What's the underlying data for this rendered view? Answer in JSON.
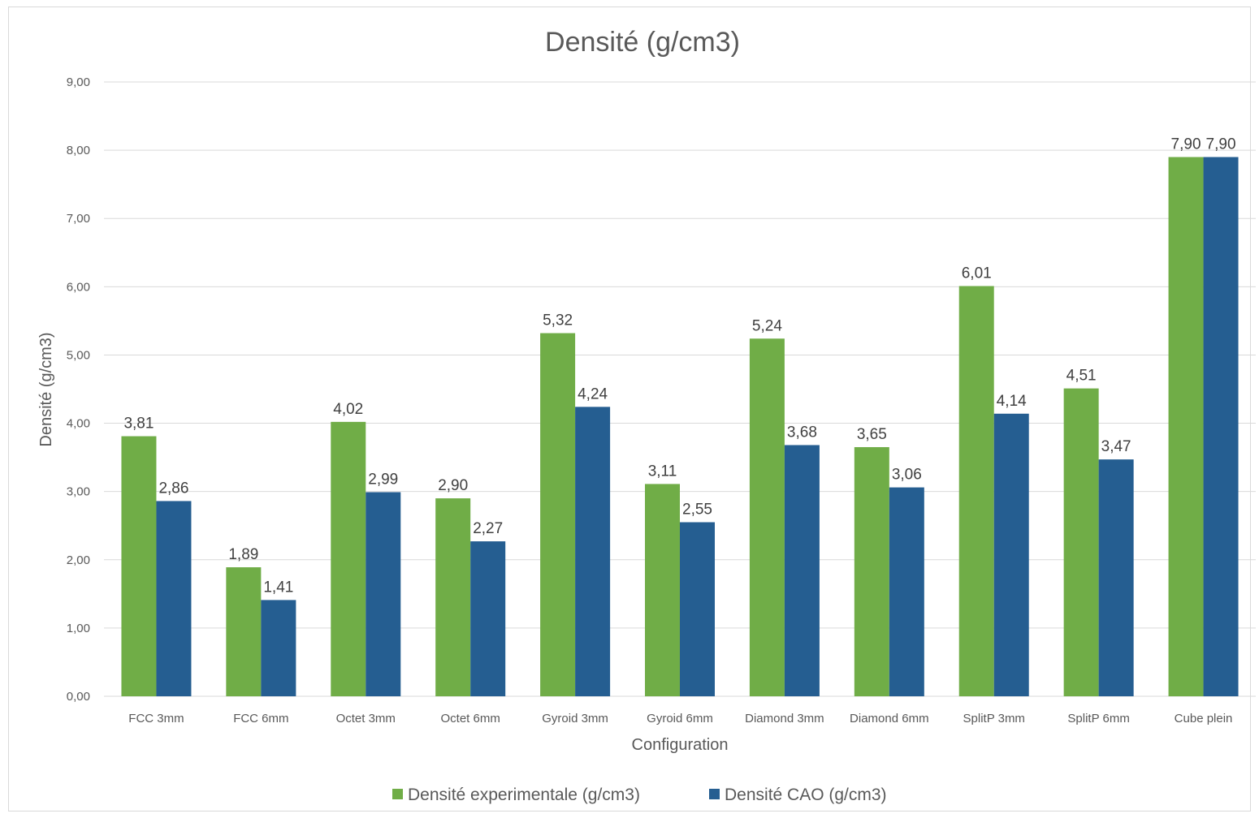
{
  "chart_data": {
    "type": "bar",
    "title": "Densité  (g/cm3)",
    "xlabel": "Configuration",
    "ylabel": "Densité  (g/cm3)",
    "ylim": [
      0,
      9
    ],
    "yticks": [
      "0,00",
      "1,00",
      "2,00",
      "3,00",
      "4,00",
      "5,00",
      "6,00",
      "7,00",
      "8,00",
      "9,00"
    ],
    "grid": true,
    "legend_position": "bottom",
    "categories": [
      "FCC 3mm",
      "FCC 6mm",
      "Octet 3mm",
      "Octet 6mm",
      "Gyroid 3mm",
      "Gyroid 6mm",
      "Diamond 3mm",
      "Diamond 6mm",
      "SplitP 3mm",
      "SplitP 6mm",
      "Cube plein"
    ],
    "series": [
      {
        "name": "Densité experimentale (g/cm3)",
        "color": "#70ad47",
        "values": [
          3.81,
          1.89,
          4.02,
          2.9,
          5.32,
          3.11,
          5.24,
          3.65,
          6.01,
          4.51,
          7.9
        ],
        "labels": [
          "3,81",
          "1,89",
          "4,02",
          "2,90",
          "5,32",
          "3,11",
          "5,24",
          "3,65",
          "6,01",
          "4,51",
          "7,90"
        ]
      },
      {
        "name": "Densité CAO (g/cm3)",
        "color": "#255e91",
        "values": [
          2.86,
          1.41,
          2.99,
          2.27,
          4.24,
          2.55,
          3.68,
          3.06,
          4.14,
          3.47,
          7.9
        ],
        "labels": [
          "2,86",
          "1,41",
          "2,99",
          "2,27",
          "4,24",
          "2,55",
          "3,68",
          "3,06",
          "4,14",
          "3,47",
          "7,90"
        ]
      }
    ]
  }
}
